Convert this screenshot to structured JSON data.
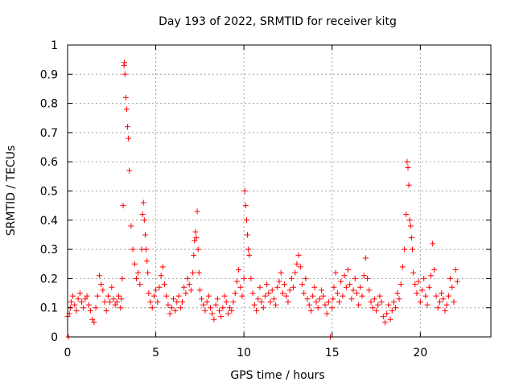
{
  "chart_data": {
    "type": "scatter",
    "title": "Day 193 of 2022, SRMTID for receiver kitg",
    "xlabel": "GPS time / hours",
    "ylabel": "SRMTID / TECUs",
    "xlim": [
      0,
      24
    ],
    "ylim": [
      0,
      1
    ],
    "x_ticks": [
      0,
      5,
      10,
      15,
      20
    ],
    "x_tick_labels": [
      "0",
      "5",
      "10",
      "15",
      "20"
    ],
    "y_ticks": [
      0,
      0.1,
      0.2,
      0.3,
      0.4,
      0.5,
      0.6,
      0.7,
      0.8,
      0.9,
      1
    ],
    "y_tick_labels": [
      "0",
      "0.1",
      "0.2",
      "0.3",
      "0.4",
      "0.5",
      "0.6",
      "0.7",
      "0.8",
      "0.9",
      "1"
    ],
    "grid": true,
    "marker": "+",
    "color": "#ff0000",
    "series": [
      {
        "name": "SRMTID",
        "x": [
          0.0,
          0.05,
          0.1,
          0.15,
          0.2,
          0.3,
          0.4,
          0.5,
          0.6,
          0.7,
          0.8,
          0.9,
          1.0,
          1.1,
          1.2,
          1.3,
          1.4,
          1.5,
          1.6,
          1.7,
          1.8,
          1.9,
          2.0,
          2.1,
          2.2,
          2.3,
          2.4,
          2.5,
          2.6,
          2.7,
          2.8,
          2.9,
          3.0,
          3.05,
          3.1,
          3.15,
          3.2,
          3.22,
          3.25,
          3.3,
          3.35,
          3.4,
          3.45,
          3.5,
          3.6,
          3.7,
          3.8,
          3.9,
          4.0,
          4.1,
          4.2,
          4.25,
          4.3,
          4.35,
          4.4,
          4.45,
          4.5,
          4.55,
          4.6,
          4.7,
          4.8,
          4.9,
          5.0,
          5.1,
          5.2,
          5.3,
          5.4,
          5.5,
          5.6,
          5.7,
          5.8,
          5.9,
          6.0,
          6.1,
          6.2,
          6.3,
          6.4,
          6.5,
          6.6,
          6.7,
          6.8,
          6.9,
          7.0,
          7.1,
          7.15,
          7.2,
          7.25,
          7.3,
          7.35,
          7.4,
          7.45,
          7.5,
          7.6,
          7.7,
          7.8,
          7.9,
          8.0,
          8.1,
          8.2,
          8.3,
          8.4,
          8.5,
          8.6,
          8.7,
          8.8,
          8.9,
          9.0,
          9.1,
          9.2,
          9.3,
          9.4,
          9.5,
          9.6,
          9.7,
          9.8,
          9.9,
          10.0,
          10.05,
          10.1,
          10.15,
          10.2,
          10.25,
          10.3,
          10.4,
          10.5,
          10.6,
          10.7,
          10.8,
          10.9,
          11.0,
          11.1,
          11.2,
          11.3,
          11.4,
          11.5,
          11.6,
          11.7,
          11.8,
          11.9,
          12.0,
          12.1,
          12.2,
          12.3,
          12.4,
          12.5,
          12.6,
          12.7,
          12.8,
          12.9,
          13.0,
          13.1,
          13.2,
          13.3,
          13.4,
          13.5,
          13.6,
          13.7,
          13.8,
          13.9,
          14.0,
          14.1,
          14.2,
          14.3,
          14.4,
          14.5,
          14.6,
          14.7,
          14.8,
          14.9,
          15.0,
          15.05,
          15.1,
          15.2,
          15.3,
          15.4,
          15.5,
          15.6,
          15.7,
          15.8,
          15.9,
          16.0,
          16.1,
          16.2,
          16.3,
          16.4,
          16.5,
          16.6,
          16.7,
          16.8,
          16.9,
          17.0,
          17.1,
          17.2,
          17.3,
          17.4,
          17.5,
          17.6,
          17.7,
          17.8,
          17.9,
          18.0,
          18.1,
          18.2,
          18.3,
          18.4,
          18.5,
          18.6,
          18.7,
          18.8,
          18.9,
          19.0,
          19.1,
          19.2,
          19.25,
          19.3,
          19.35,
          19.4,
          19.45,
          19.5,
          19.55,
          19.6,
          19.7,
          19.8,
          19.9,
          20.0,
          20.1,
          20.2,
          20.3,
          20.4,
          20.5,
          20.6,
          20.7,
          20.8,
          20.9,
          21.0,
          21.1,
          21.2,
          21.3,
          21.4,
          21.5,
          21.6,
          21.7,
          21.8,
          21.9,
          22.0,
          22.1
        ],
        "y": [
          0.07,
          0.0,
          0.08,
          0.1,
          0.12,
          0.14,
          0.11,
          0.09,
          0.13,
          0.15,
          0.12,
          0.1,
          0.13,
          0.14,
          0.11,
          0.09,
          0.06,
          0.05,
          0.1,
          0.14,
          0.21,
          0.18,
          0.16,
          0.12,
          0.09,
          0.14,
          0.12,
          0.17,
          0.13,
          0.11,
          0.12,
          0.14,
          0.1,
          0.13,
          0.2,
          0.45,
          0.93,
          0.94,
          0.9,
          0.82,
          0.78,
          0.72,
          0.68,
          0.57,
          0.38,
          0.3,
          0.25,
          0.2,
          0.22,
          0.18,
          0.3,
          0.42,
          0.46,
          0.4,
          0.35,
          0.3,
          0.26,
          0.22,
          0.15,
          0.12,
          0.1,
          0.14,
          0.16,
          0.12,
          0.17,
          0.21,
          0.24,
          0.18,
          0.14,
          0.11,
          0.08,
          0.1,
          0.13,
          0.09,
          0.12,
          0.14,
          0.1,
          0.12,
          0.17,
          0.15,
          0.2,
          0.18,
          0.16,
          0.22,
          0.28,
          0.33,
          0.36,
          0.34,
          0.43,
          0.3,
          0.22,
          0.16,
          0.13,
          0.11,
          0.09,
          0.12,
          0.14,
          0.1,
          0.08,
          0.06,
          0.11,
          0.13,
          0.09,
          0.07,
          0.1,
          0.14,
          0.12,
          0.08,
          0.1,
          0.09,
          0.12,
          0.15,
          0.19,
          0.23,
          0.17,
          0.14,
          0.2,
          0.5,
          0.45,
          0.4,
          0.35,
          0.3,
          0.28,
          0.2,
          0.15,
          0.11,
          0.09,
          0.13,
          0.17,
          0.12,
          0.1,
          0.14,
          0.18,
          0.15,
          0.12,
          0.16,
          0.13,
          0.11,
          0.17,
          0.19,
          0.22,
          0.15,
          0.18,
          0.14,
          0.12,
          0.16,
          0.2,
          0.17,
          0.22,
          0.25,
          0.28,
          0.24,
          0.18,
          0.15,
          0.2,
          0.13,
          0.11,
          0.09,
          0.14,
          0.17,
          0.12,
          0.1,
          0.13,
          0.16,
          0.14,
          0.11,
          0.08,
          0.12,
          0.0,
          0.1,
          0.13,
          0.17,
          0.22,
          0.15,
          0.12,
          0.19,
          0.14,
          0.21,
          0.17,
          0.23,
          0.18,
          0.13,
          0.16,
          0.2,
          0.15,
          0.11,
          0.17,
          0.14,
          0.21,
          0.27,
          0.2,
          0.16,
          0.12,
          0.1,
          0.13,
          0.09,
          0.11,
          0.14,
          0.12,
          0.07,
          0.05,
          0.08,
          0.11,
          0.06,
          0.09,
          0.12,
          0.1,
          0.15,
          0.13,
          0.18,
          0.24,
          0.3,
          0.42,
          0.6,
          0.58,
          0.52,
          0.4,
          0.38,
          0.34,
          0.3,
          0.22,
          0.18,
          0.15,
          0.19,
          0.12,
          0.16,
          0.2,
          0.14,
          0.11,
          0.17,
          0.21,
          0.32,
          0.23,
          0.14,
          0.1,
          0.12,
          0.15,
          0.13,
          0.09,
          0.11,
          0.14,
          0.2,
          0.17,
          0.12,
          0.23,
          0.19
        ]
      }
    ]
  }
}
